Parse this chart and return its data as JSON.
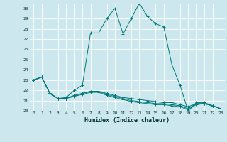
{
  "xlabel": "Humidex (Indice chaleur)",
  "bg_color": "#cce8ee",
  "line_color": "#007878",
  "grid_color": "#ffffff",
  "xlim": [
    -0.5,
    23.5
  ],
  "ylim": [
    20,
    30.4
  ],
  "yticks": [
    20,
    21,
    22,
    23,
    24,
    25,
    26,
    27,
    28,
    29,
    30
  ],
  "xticks": [
    0,
    1,
    2,
    3,
    4,
    5,
    6,
    7,
    8,
    9,
    10,
    11,
    12,
    13,
    14,
    15,
    16,
    17,
    18,
    19,
    20,
    21,
    22,
    23
  ],
  "series": [
    [
      23.0,
      23.3,
      21.7,
      21.2,
      21.3,
      22.0,
      22.5,
      27.6,
      27.6,
      29.0,
      30.0,
      27.5,
      29.0,
      30.5,
      29.2,
      28.5,
      28.2,
      24.5,
      22.5,
      20.0,
      20.8,
      20.8,
      20.5,
      20.2
    ],
    [
      23.0,
      23.3,
      21.7,
      21.2,
      21.2,
      21.5,
      21.7,
      21.9,
      21.9,
      21.7,
      21.5,
      21.3,
      21.2,
      21.1,
      21.0,
      20.9,
      20.8,
      20.8,
      20.6,
      20.4,
      20.7,
      20.7,
      20.5,
      20.2
    ],
    [
      23.0,
      23.3,
      21.7,
      21.2,
      21.2,
      21.5,
      21.7,
      21.9,
      21.9,
      21.6,
      21.4,
      21.2,
      21.0,
      20.9,
      20.8,
      20.7,
      20.7,
      20.6,
      20.5,
      20.2,
      20.7,
      20.7,
      20.5,
      20.2
    ],
    [
      23.0,
      23.3,
      21.7,
      21.2,
      21.2,
      21.4,
      21.6,
      21.8,
      21.8,
      21.5,
      21.3,
      21.1,
      20.9,
      20.8,
      20.7,
      20.6,
      20.6,
      20.5,
      20.4,
      20.1,
      20.6,
      20.7,
      20.5,
      20.2
    ]
  ]
}
